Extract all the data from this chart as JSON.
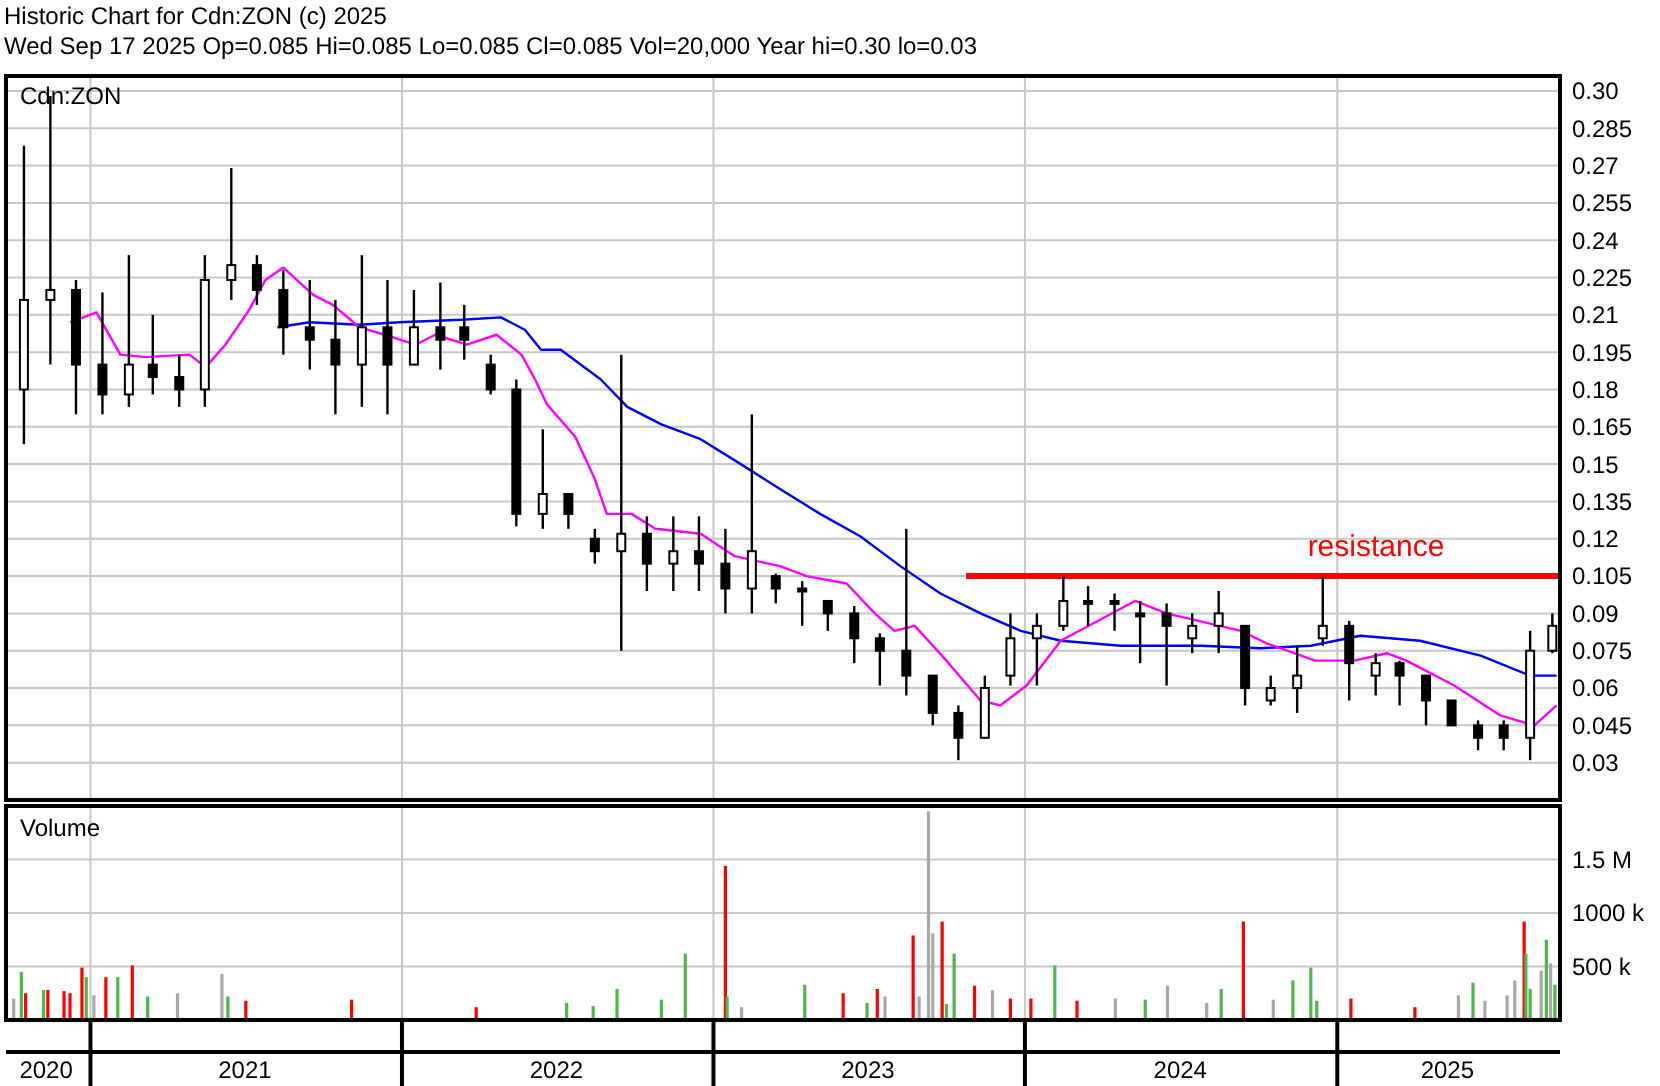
{
  "chart_data": [
    {
      "type": "candlestick",
      "title": "Historic Chart for Cdn:ZON (c) 2025",
      "subtitle": "Wed Sep 17 2025  Op=0.085  Hi=0.085  Lo=0.085  Cl=0.085  Vol=20,000  Year hi=0.30  lo=0.03",
      "annotations": [
        "Cdn:ZON"
      ],
      "xlim": [
        "2020-09-24",
        "2025-09-19"
      ],
      "xticks": [
        {
          "value": "2021-01-01",
          "label": null
        },
        {
          "value": "2022-01-01",
          "label": null
        },
        {
          "value": "2023-01-01",
          "label": null
        },
        {
          "value": "2024-01-01",
          "label": null
        },
        {
          "value": "2025-01-01",
          "label": null
        }
      ],
      "ylim": [
        0.015,
        0.306
      ],
      "yticks": [
        0.03,
        0.045,
        0.06,
        0.075,
        0.09,
        0.105,
        0.12,
        0.135,
        0.15,
        0.165,
        0.18,
        0.195,
        0.21,
        0.225,
        0.24,
        0.255,
        0.27,
        0.285,
        {
          "value": 0.3,
          "label": "0.30"
        }
      ],
      "tick_labels": "y",
      "grid": true,
      "series": [
        {
          "color": "#000000",
          "x": [
            "2020-10-15",
            "2020-11-15",
            "2020-12-15",
            "2021-01-15",
            "2021-02-15",
            "2021-03-15",
            "2021-04-15",
            "2021-05-15",
            "2021-06-15",
            "2021-07-15",
            "2021-08-15",
            "2021-09-15",
            "2021-10-15",
            "2021-11-15",
            "2021-12-15",
            "2022-01-15",
            "2022-02-15",
            "2022-03-15",
            "2022-04-15",
            "2022-05-15",
            "2022-06-15",
            "2022-07-15",
            "2022-08-15",
            "2022-09-15",
            "2022-10-15",
            "2022-11-15",
            "2022-12-15",
            "2023-01-15",
            "2023-02-15",
            "2023-03-15",
            "2023-04-15",
            "2023-05-15",
            "2023-06-15",
            "2023-07-15",
            "2023-08-15",
            "2023-09-15",
            "2023-10-15",
            "2023-11-15",
            "2023-12-15",
            "2024-01-15",
            "2024-02-15",
            "2024-03-15",
            "2024-04-15",
            "2024-05-15",
            "2024-06-15",
            "2024-07-15",
            "2024-08-15",
            "2024-09-15",
            "2024-10-15",
            "2024-11-15",
            "2024-12-15",
            "2025-01-15",
            "2025-02-15",
            "2025-03-15",
            "2025-04-15",
            "2025-05-15",
            "2025-06-15",
            "2025-07-15",
            "2025-08-15",
            "2025-09-10"
          ],
          "ohlc": [
            [
              0.18,
              0.278,
              0.158,
              0.216
            ],
            [
              0.216,
              0.298,
              0.19,
              0.22
            ],
            [
              0.22,
              0.224,
              0.17,
              0.19
            ],
            [
              0.19,
              0.219,
              0.17,
              0.178
            ],
            [
              0.178,
              0.234,
              0.173,
              0.19
            ],
            [
              0.19,
              0.21,
              0.178,
              0.185
            ],
            [
              0.185,
              0.194,
              0.173,
              0.18
            ],
            [
              0.18,
              0.234,
              0.173,
              0.224
            ],
            [
              0.224,
              0.269,
              0.216,
              0.23
            ],
            [
              0.23,
              0.234,
              0.214,
              0.22
            ],
            [
              0.22,
              0.228,
              0.194,
              0.205
            ],
            [
              0.205,
              0.224,
              0.188,
              0.2
            ],
            [
              0.2,
              0.216,
              0.17,
              0.19
            ],
            [
              0.19,
              0.234,
              0.173,
              0.205
            ],
            [
              0.205,
              0.224,
              0.17,
              0.19
            ],
            [
              0.19,
              0.22,
              0.19,
              0.205
            ],
            [
              0.205,
              0.223,
              0.188,
              0.2
            ],
            [
              0.205,
              0.214,
              0.192,
              0.2
            ],
            [
              0.19,
              0.194,
              0.178,
              0.18
            ],
            [
              0.18,
              0.184,
              0.125,
              0.13
            ],
            [
              0.13,
              0.164,
              0.124,
              0.138
            ],
            [
              0.138,
              0.138,
              0.124,
              0.13
            ],
            [
              0.12,
              0.124,
              0.11,
              0.115
            ],
            [
              0.115,
              0.194,
              0.075,
              0.122
            ],
            [
              0.122,
              0.129,
              0.099,
              0.11
            ],
            [
              0.11,
              0.129,
              0.099,
              0.115
            ],
            [
              0.115,
              0.129,
              0.099,
              0.11
            ],
            [
              0.11,
              0.124,
              0.09,
              0.1
            ],
            [
              0.1,
              0.17,
              0.09,
              0.115
            ],
            [
              0.105,
              0.106,
              0.094,
              0.1
            ],
            [
              0.1,
              0.103,
              0.085,
              0.1
            ],
            [
              0.095,
              0.095,
              0.083,
              0.09
            ],
            [
              0.09,
              0.093,
              0.07,
              0.08
            ],
            [
              0.08,
              0.082,
              0.061,
              0.075
            ],
            [
              0.075,
              0.124,
              0.057,
              0.065
            ],
            [
              0.065,
              0.065,
              0.045,
              0.05
            ],
            [
              0.05,
              0.053,
              0.031,
              0.04
            ],
            [
              0.04,
              0.065,
              0.04,
              0.06
            ],
            [
              0.065,
              0.09,
              0.061,
              0.08
            ],
            [
              0.08,
              0.09,
              0.061,
              0.085
            ],
            [
              0.085,
              0.105,
              0.083,
              0.095
            ],
            [
              0.095,
              0.101,
              0.085,
              0.095
            ],
            [
              0.095,
              0.098,
              0.083,
              0.095
            ],
            [
              0.09,
              0.095,
              0.07,
              0.09
            ],
            [
              0.09,
              0.094,
              0.061,
              0.085
            ],
            [
              0.08,
              0.09,
              0.074,
              0.085
            ],
            [
              0.085,
              0.099,
              0.074,
              0.09
            ],
            [
              0.085,
              0.085,
              0.053,
              0.06
            ],
            [
              0.055,
              0.065,
              0.053,
              0.06
            ],
            [
              0.06,
              0.077,
              0.05,
              0.065
            ],
            [
              0.08,
              0.105,
              0.077,
              0.085
            ],
            [
              0.085,
              0.087,
              0.055,
              0.07
            ],
            [
              0.065,
              0.074,
              0.057,
              0.07
            ],
            [
              0.07,
              0.071,
              0.053,
              0.065
            ],
            [
              0.065,
              0.065,
              0.045,
              0.055
            ],
            [
              0.055,
              0.055,
              0.045,
              0.045
            ],
            [
              0.045,
              0.047,
              0.035,
              0.04
            ],
            [
              0.045,
              0.047,
              0.035,
              0.04
            ],
            [
              0.04,
              0.083,
              0.031,
              0.075
            ],
            [
              0.075,
              0.09,
              0.074,
              0.085
            ]
          ]
        },
        {
          "type": "line",
          "color": "#0000ff",
          "x": [
            "2021-08-08",
            "2021-09-15",
            "2021-11-12",
            "2021-12-29",
            "2022-03-12",
            "2022-04-27",
            "2022-05-25",
            "2022-06-13",
            "2022-07-06",
            "2022-08-22",
            "2022-09-22",
            "2022-11-01",
            "2022-12-17",
            "2023-02-02",
            "2023-03-20",
            "2023-05-06",
            "2023-06-22",
            "2023-08-08",
            "2023-09-24",
            "2023-11-10",
            "2023-12-27",
            "2024-02-12",
            "2024-04-22",
            "2024-07-25",
            "2024-10-03",
            "2024-12-01",
            "2025-01-28",
            "2025-04-08",
            "2025-06-18",
            "2025-08-15",
            "2025-09-15"
          ],
          "values": [
            0.205,
            0.207,
            0.206,
            0.207,
            0.208,
            0.209,
            0.204,
            0.196,
            0.196,
            0.184,
            0.173,
            0.166,
            0.16,
            0.15,
            0.14,
            0.13,
            0.121,
            0.109,
            0.098,
            0.09,
            0.083,
            0.079,
            0.077,
            0.077,
            0.076,
            0.077,
            0.081,
            0.079,
            0.073,
            0.065,
            0.065
          ]
        },
        {
          "type": "line",
          "color": "#ff00ff",
          "x": [
            "2020-12-08",
            "2021-01-08",
            "2021-02-05",
            "2021-03-07",
            "2021-04-27",
            "2021-05-16",
            "2021-06-08",
            "2021-07-06",
            "2021-07-25",
            "2021-08-15",
            "2021-09-19",
            "2021-10-12",
            "2021-11-12",
            "2021-12-12",
            "2022-01-17",
            "2022-02-09",
            "2022-03-18",
            "2022-04-22",
            "2022-05-21",
            "2022-06-06",
            "2022-06-20",
            "2022-07-23",
            "2022-08-15",
            "2022-08-29",
            "2022-09-27",
            "2022-10-25",
            "2022-12-17",
            "2023-01-26",
            "2023-03-20",
            "2023-04-20",
            "2023-06-06",
            "2023-07-09",
            "2023-08-01",
            "2023-08-25",
            "2023-10-01",
            "2023-11-10",
            "2023-12-03",
            "2024-01-03",
            "2024-02-12",
            "2024-05-09",
            "2024-06-15",
            "2024-09-10",
            "2024-10-10",
            "2024-12-06",
            "2025-01-21",
            "2025-02-28",
            "2025-03-23",
            "2025-05-18",
            "2025-07-11",
            "2025-08-20",
            "2025-09-15"
          ],
          "values": [
            0.207,
            0.211,
            0.194,
            0.193,
            0.194,
            0.189,
            0.198,
            0.212,
            0.224,
            0.229,
            0.218,
            0.214,
            0.205,
            0.202,
            0.198,
            0.202,
            0.198,
            0.202,
            0.194,
            0.184,
            0.174,
            0.161,
            0.144,
            0.13,
            0.13,
            0.124,
            0.122,
            0.113,
            0.109,
            0.105,
            0.102,
            0.09,
            0.083,
            0.085,
            0.071,
            0.055,
            0.053,
            0.061,
            0.079,
            0.095,
            0.09,
            0.083,
            0.078,
            0.071,
            0.071,
            0.074,
            0.071,
            0.061,
            0.049,
            0.045,
            0.053
          ]
        },
        {
          "type": "line",
          "name": "resistance",
          "color": "#ff0000",
          "x": [
            "2023-10-24",
            "2025-09-19"
          ],
          "values": [
            0.105,
            0.105
          ]
        }
      ]
    },
    {
      "type": "bar",
      "title": "Volume",
      "xlim": [
        "2020-09-24",
        "2025-09-19"
      ],
      "xticks": [
        {
          "value": "2020-11-10",
          "label": "2020"
        },
        {
          "value": "2021-01-01",
          "label": null
        },
        {
          "value": "2021-07-01",
          "label": "2021"
        },
        {
          "value": "2022-01-01",
          "label": null
        },
        {
          "value": "2022-07-01",
          "label": "2022"
        },
        {
          "value": "2023-01-01",
          "label": null
        },
        {
          "value": "2023-07-01",
          "label": "2023"
        },
        {
          "value": "2024-01-01",
          "label": null
        },
        {
          "value": "2024-07-01",
          "label": "2024"
        },
        {
          "value": "2025-01-01",
          "label": null
        },
        {
          "value": "2025-05-10",
          "label": "2025"
        }
      ],
      "ylim": [
        0,
        2000000
      ],
      "yticks": [
        {
          "value": 500000,
          "label": "500 k"
        },
        {
          "value": 1000000,
          "label": "1000 k"
        },
        {
          "value": 1500000,
          "label": "1.5 M"
        }
      ],
      "grid": true,
      "x": [
        "2020-10-03",
        "2020-10-12",
        "2020-10-17",
        "2020-11-07",
        "2020-11-12",
        "2020-12-01",
        "2020-12-08",
        "2020-12-22",
        "2020-12-27",
        "2021-01-05",
        "2021-01-19",
        "2021-02-02",
        "2021-02-19",
        "2021-03-09",
        "2021-04-13",
        "2021-06-04",
        "2021-06-11",
        "2021-07-02",
        "2021-11-03",
        "2022-03-29",
        "2022-07-13",
        "2022-08-13",
        "2022-09-10",
        "2022-11-01",
        "2022-11-29",
        "2023-01-15",
        "2023-01-17",
        "2023-02-03",
        "2023-04-18",
        "2023-06-02",
        "2023-06-30",
        "2023-07-12",
        "2023-07-21",
        "2023-08-23",
        "2023-08-30",
        "2023-09-10",
        "2023-09-15",
        "2023-09-26",
        "2023-10-01",
        "2023-10-10",
        "2023-11-03",
        "2023-11-24",
        "2023-12-15",
        "2024-01-08",
        "2024-02-05",
        "2024-03-02",
        "2024-04-16",
        "2024-05-21",
        "2024-06-16",
        "2024-08-01",
        "2024-08-18",
        "2024-09-13",
        "2024-10-18",
        "2024-11-10",
        "2024-12-01",
        "2024-12-08",
        "2025-01-17",
        "2025-04-02",
        "2025-05-23",
        "2025-06-09",
        "2025-06-23",
        "2025-07-19",
        "2025-07-28",
        "2025-08-08",
        "2025-08-10",
        "2025-08-15",
        "2025-08-28",
        "2025-09-03",
        "2025-09-08",
        "2025-09-13"
      ],
      "values": [
        200000,
        450000,
        250000,
        280000,
        280000,
        270000,
        250000,
        490000,
        400000,
        230000,
        400000,
        400000,
        510000,
        220000,
        250000,
        430000,
        220000,
        180000,
        190000,
        120000,
        160000,
        130000,
        290000,
        190000,
        620000,
        1440000,
        220000,
        120000,
        330000,
        250000,
        160000,
        290000,
        220000,
        790000,
        220000,
        1950000,
        810000,
        920000,
        150000,
        620000,
        320000,
        280000,
        200000,
        200000,
        510000,
        180000,
        200000,
        190000,
        320000,
        160000,
        290000,
        920000,
        190000,
        370000,
        490000,
        180000,
        200000,
        120000,
        230000,
        350000,
        180000,
        230000,
        370000,
        920000,
        620000,
        290000,
        460000,
        750000,
        530000,
        330000
      ],
      "colors": [
        "#a8a8a8",
        "#4cb84c",
        "#ff0000",
        "#4cb84c",
        "#ff0000",
        "#ff0000",
        "#ff0000",
        "#ff0000",
        "#4cb84c",
        "#a8a8a8",
        "#ff0000",
        "#4cb84c",
        "#ff0000",
        "#4cb84c",
        "#a8a8a8",
        "#a8a8a8",
        "#4cb84c",
        "#ff0000",
        "#ff0000",
        "#ff0000",
        "#4cb84c",
        "#4cb84c",
        "#4cb84c",
        "#4cb84c",
        "#4cb84c",
        "#ff0000",
        "#4cb84c",
        "#a8a8a8",
        "#4cb84c",
        "#ff0000",
        "#4cb84c",
        "#ff0000",
        "#a8a8a8",
        "#ff0000",
        "#a8a8a8",
        "#a8a8a8",
        "#a8a8a8",
        "#ff0000",
        "#4cb84c",
        "#4cb84c",
        "#ff0000",
        "#a8a8a8",
        "#ff0000",
        "#ff0000",
        "#4cb84c",
        "#ff0000",
        "#a8a8a8",
        "#4cb84c",
        "#a8a8a8",
        "#a8a8a8",
        "#4cb84c",
        "#ff0000",
        "#a8a8a8",
        "#4cb84c",
        "#4cb84c",
        "#4cb84c",
        "#ff0000",
        "#ff0000",
        "#a8a8a8",
        "#4cb84c",
        "#a8a8a8",
        "#a8a8a8",
        "#a8a8a8",
        "#ff0000",
        "#4cb84c",
        "#4cb84c",
        "#a8a8a8",
        "#4cb84c",
        "#a8a8a8",
        "#4cb84c"
      ]
    }
  ]
}
